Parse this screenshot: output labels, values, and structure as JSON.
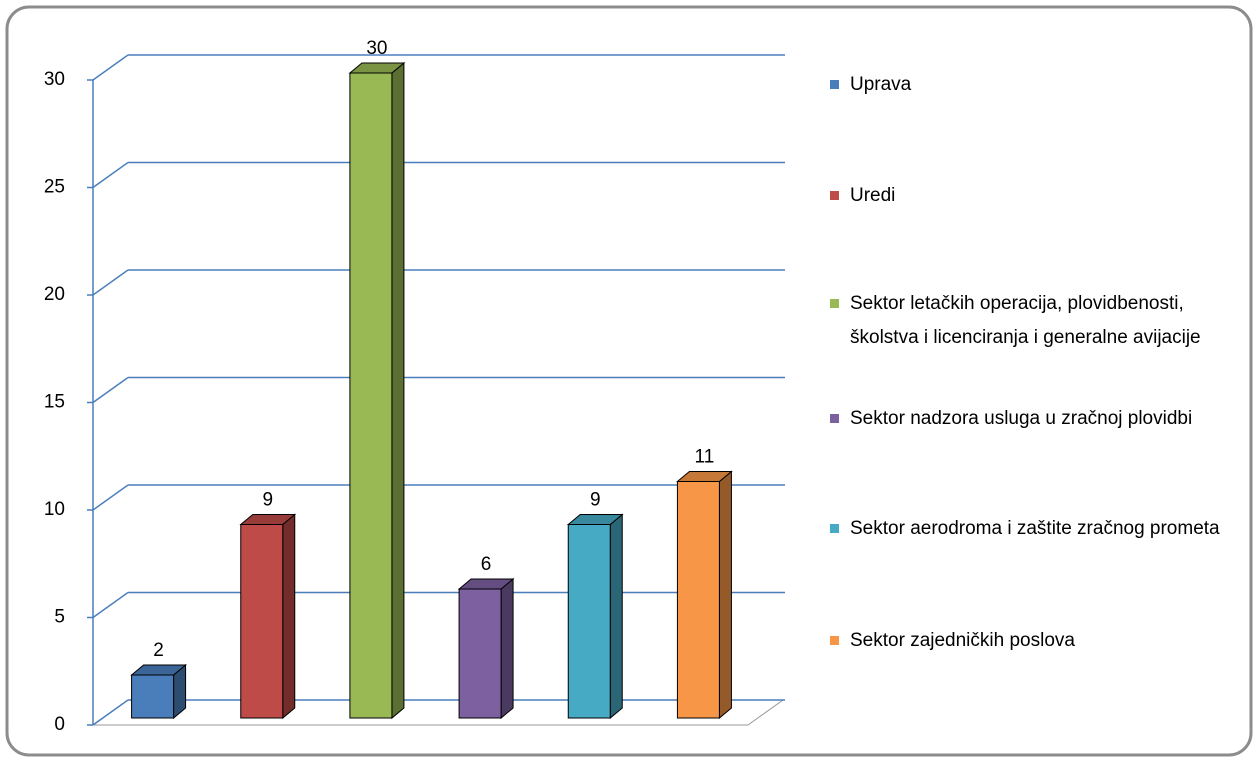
{
  "chart_data": {
    "type": "bar3d",
    "series": [
      {
        "name": "Uprava",
        "color": "#4a7ebb",
        "values": [
          2
        ]
      },
      {
        "name": "Uredi",
        "color": "#be4b48",
        "values": [
          9
        ]
      },
      {
        "name": "Sektor letačkih operacija, plovidbenosti, školstva i licenciranja i generalne avijacije",
        "color": "#98b954",
        "values": [
          30
        ]
      },
      {
        "name": "Sektor nadzora usluga u zračnoj plovidbi",
        "color": "#7d60a0",
        "values": [
          6
        ]
      },
      {
        "name": "Sektor aerodroma i zaštite zračnog prometa",
        "color": "#46aac5",
        "values": [
          9
        ]
      },
      {
        "name": "Sektor zajedničkih poslova",
        "color": "#f79646",
        "values": [
          11
        ]
      }
    ],
    "ylim": [
      0,
      30
    ],
    "yticks": [
      0,
      5,
      10,
      15,
      20,
      25,
      30
    ],
    "grid": true,
    "legend": "right"
  }
}
